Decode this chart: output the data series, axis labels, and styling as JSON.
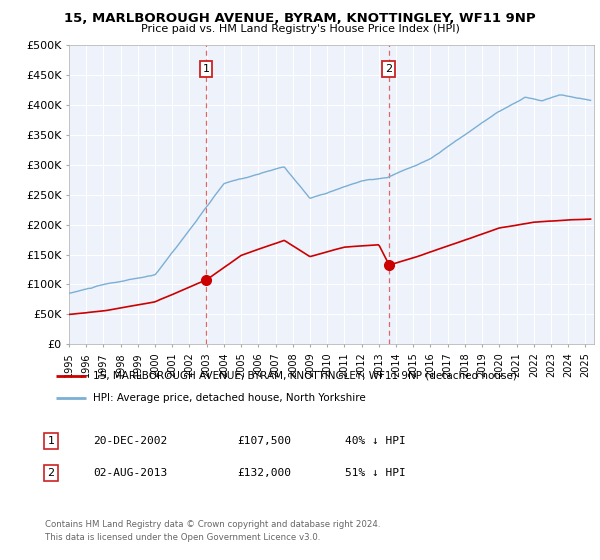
{
  "title1": "15, MARLBOROUGH AVENUE, BYRAM, KNOTTINGLEY, WF11 9NP",
  "title2": "Price paid vs. HM Land Registry's House Price Index (HPI)",
  "ylabel_ticks": [
    "£0",
    "£50K",
    "£100K",
    "£150K",
    "£200K",
    "£250K",
    "£300K",
    "£350K",
    "£400K",
    "£450K",
    "£500K"
  ],
  "ytick_vals": [
    0,
    50000,
    100000,
    150000,
    200000,
    250000,
    300000,
    350000,
    400000,
    450000,
    500000
  ],
  "ylim": [
    0,
    500000
  ],
  "xlim_start": 1995.0,
  "xlim_end": 2025.5,
  "transaction1": {
    "date_label": "20-DEC-2002",
    "price": "£107,500",
    "pct": "40% ↓ HPI",
    "year": 2002.96,
    "num": "1",
    "price_val": 107500
  },
  "transaction2": {
    "date_label": "02-AUG-2013",
    "price": "£132,000",
    "pct": "51% ↓ HPI",
    "num": "2",
    "year": 2013.58,
    "price_val": 132000
  },
  "line_property_color": "#cc0000",
  "line_hpi_color": "#7bafd4",
  "legend_property_label": "15, MARLBOROUGH AVENUE, BYRAM, KNOTTINGLEY, WF11 9NP (detached house)",
  "legend_hpi_label": "HPI: Average price, detached house, North Yorkshire",
  "footer1": "Contains HM Land Registry data © Crown copyright and database right 2024.",
  "footer2": "This data is licensed under the Open Government Licence v3.0.",
  "background_color": "#ffffff",
  "plot_bg_color": "#eef2fb",
  "grid_color": "#ffffff"
}
